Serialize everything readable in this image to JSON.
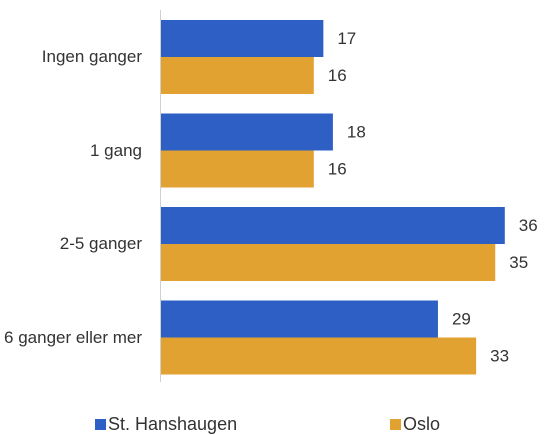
{
  "chart_data": {
    "type": "bar",
    "orientation": "horizontal",
    "categories": [
      "Ingen ganger",
      "1 gang",
      "2-5 ganger",
      "6 ganger eller mer"
    ],
    "series": [
      {
        "name": "St. Hanshaugen",
        "color": "#2e5fc4",
        "values": [
          17,
          18,
          36,
          29
        ]
      },
      {
        "name": "Oslo",
        "color": "#e2a232",
        "values": [
          16,
          16,
          35,
          33
        ]
      }
    ]
  }
}
